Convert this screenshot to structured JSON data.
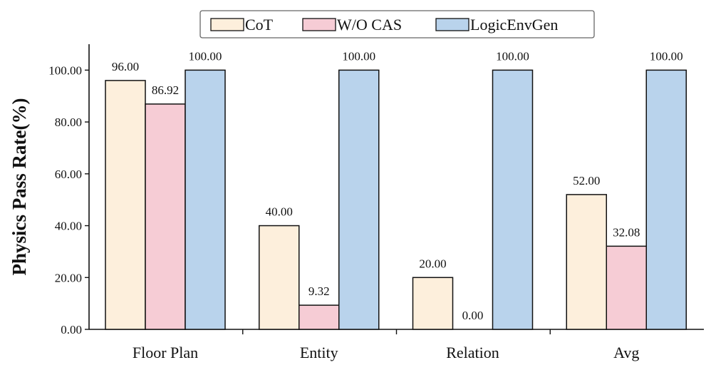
{
  "chart_data": {
    "type": "bar",
    "title": "",
    "xlabel": "",
    "ylabel": "Physics Pass Rate(%)",
    "ylim": [
      0,
      110
    ],
    "yticks": [
      0,
      20,
      40,
      60,
      80,
      100
    ],
    "ytick_labels": [
      "0.00",
      "20.00",
      "40.00",
      "60.00",
      "80.00",
      "100.00"
    ],
    "grid": false,
    "legend_position": "top-center",
    "categories": [
      "Floor Plan",
      "Entity",
      "Relation",
      "Avg"
    ],
    "series": [
      {
        "name": "CoT",
        "color": "#FDEFDC",
        "values": [
          96.0,
          40.0,
          20.0,
          52.0
        ],
        "labels": [
          "96.00",
          "40.00",
          "20.00",
          "52.00"
        ]
      },
      {
        "name": "W/O CAS",
        "color": "#F6CCD5",
        "values": [
          86.92,
          9.32,
          0.0,
          32.08
        ],
        "labels": [
          "86.92",
          "9.32",
          "0.00",
          "32.08"
        ]
      },
      {
        "name": "LogicEnvGen",
        "color": "#B9D3EC",
        "values": [
          100.0,
          100.0,
          100.0,
          100.0
        ],
        "labels": [
          "100.00",
          "100.00",
          "100.00",
          "100.00"
        ]
      }
    ]
  }
}
